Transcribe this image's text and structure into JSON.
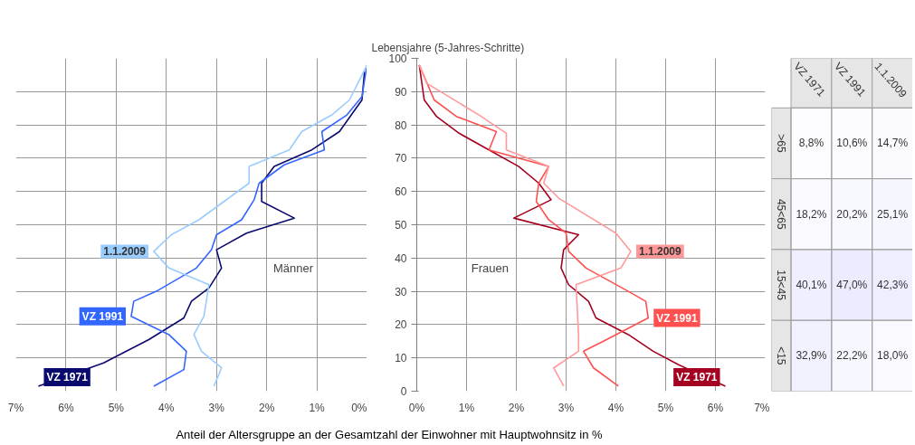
{
  "chart_data": [
    {
      "type": "line",
      "xlabel": "Anteil der Altersgruppe an der Gesamtzahl der Einwohner mit Hauptwohnsitz in %",
      "annotations": [
        "Männer"
      ],
      "xlim": [
        7,
        0
      ],
      "xticks": [
        {
          "value": 7,
          "label": "7%"
        },
        {
          "value": 6,
          "label": "6%"
        },
        {
          "value": 5,
          "label": "5%"
        },
        {
          "value": 4,
          "label": "4%"
        },
        {
          "value": 3,
          "label": "3%"
        },
        {
          "value": 2,
          "label": "2%"
        },
        {
          "value": 1,
          "label": "1%"
        },
        {
          "value": 0,
          "label": "0%"
        }
      ],
      "ylim": [
        0,
        100
      ],
      "yticks": [
        0,
        10,
        20,
        30,
        40,
        50,
        60,
        70,
        80,
        90,
        100
      ],
      "grid": true,
      "tick_labels": "x",
      "series": [
        {
          "name": "VZ 1971",
          "color": "#0a0a6e",
          "x": [
            6.55,
            5.25,
            4.35,
            3.65,
            3.5,
            3.15,
            2.9,
            3.0,
            2.4,
            1.45,
            2.1,
            2.1,
            1.85,
            1.1,
            0.55,
            0.1,
            0.05
          ],
          "values": [
            1.5,
            8.5,
            15.5,
            22,
            27,
            31,
            37,
            42.5,
            47.5,
            52,
            57,
            62.5,
            67.5,
            72.5,
            78,
            87.5,
            96
          ]
        },
        {
          "name": "VZ 1991",
          "color": "#3366ff",
          "x": [
            4.25,
            3.65,
            3.6,
            3.95,
            4.7,
            4.65,
            4.2,
            3.4,
            3.1,
            3.0,
            2.5,
            2.25,
            2.15,
            1.65,
            0.85,
            0.9,
            0.4,
            0.1,
            0
          ],
          "values": [
            1.5,
            6.5,
            12,
            17,
            22.5,
            27,
            30,
            37,
            42.5,
            47,
            51.5,
            57.5,
            62.5,
            68,
            72.5,
            78,
            83,
            88.5,
            98
          ]
        },
        {
          "name": "1.1.2009",
          "color": "#99ccff",
          "x": [
            3.05,
            2.9,
            3.3,
            3.45,
            3.25,
            3.15,
            3.95,
            4.25,
            3.9,
            3.35,
            2.85,
            2.35,
            2.35,
            1.55,
            1.3,
            0.7,
            0.35,
            0
          ],
          "values": [
            1.5,
            7,
            12,
            17,
            22.5,
            32,
            37,
            42,
            47,
            51.5,
            57,
            62.5,
            67.5,
            72.5,
            78,
            83,
            87.5,
            98
          ]
        }
      ]
    },
    {
      "type": "line",
      "ylabel": "Lebensjahre (5-Jahres-Schritte)",
      "annotations": [
        "Frauen"
      ],
      "xlim": [
        0,
        7
      ],
      "xticks": [
        {
          "value": 0,
          "label": "0%"
        },
        {
          "value": 1,
          "label": "1%"
        },
        {
          "value": 2,
          "label": "2%"
        },
        {
          "value": 3,
          "label": "3%"
        },
        {
          "value": 4,
          "label": "4%"
        },
        {
          "value": 5,
          "label": "5%"
        },
        {
          "value": 6,
          "label": "6%"
        },
        {
          "value": 7,
          "label": "7%"
        }
      ],
      "ylim": [
        0,
        100
      ],
      "yticks": [
        0,
        10,
        20,
        30,
        40,
        50,
        60,
        70,
        80,
        90,
        100
      ],
      "grid": true,
      "series": [
        {
          "name": "VZ 1971",
          "color": "#a50021",
          "x": [
            6.2,
            5.25,
            4.75,
            4.25,
            3.6,
            3.45,
            3.05,
            2.9,
            2.95,
            3.25,
            1.95,
            2.7,
            2.45,
            2.05,
            1.45,
            0.85,
            0.4,
            0.15,
            0.05
          ],
          "values": [
            1.5,
            8,
            12,
            17,
            22,
            27,
            32,
            37,
            42.5,
            47,
            52,
            57.5,
            62.5,
            67.5,
            72.5,
            77.5,
            82.5,
            87.5,
            98
          ]
        },
        {
          "name": "VZ 1991",
          "color": "#ff5050",
          "x": [
            4.05,
            3.55,
            3.35,
            3.75,
            4.65,
            4.6,
            4.25,
            3.4,
            3.05,
            3.0,
            2.65,
            2.4,
            2.45,
            2.65,
            1.45,
            1.6,
            0.8,
            0.35,
            0.05
          ],
          "values": [
            1.5,
            7,
            12,
            15,
            22,
            27,
            30,
            37,
            42,
            47.5,
            51.5,
            57,
            62.5,
            67.5,
            72.5,
            78,
            82.5,
            87.5,
            98
          ]
        },
        {
          "name": "1.1.2009",
          "color": "#ff9999",
          "x": [
            2.95,
            2.75,
            3.25,
            3.25,
            3.2,
            4.1,
            4.3,
            4.0,
            2.85,
            2.55,
            2.65,
            1.8,
            1.8,
            1.25,
            0.2,
            0.05
          ],
          "values": [
            1.5,
            7,
            12,
            17,
            32,
            37,
            42,
            47.5,
            58,
            62.5,
            67.5,
            72.5,
            77.5,
            83,
            92.5,
            98
          ]
        }
      ]
    },
    {
      "type": "heatmap",
      "categories": [
        "VZ 1971",
        "VZ 1991",
        "1.1.2009"
      ],
      "y_categories": [
        ">65",
        "45<65",
        "15<45",
        "<15"
      ],
      "cells": [
        [
          8.8,
          10.6,
          14.7
        ],
        [
          18.2,
          20.2,
          25.1
        ],
        [
          40.1,
          47.0,
          42.3
        ],
        [
          32.9,
          22.2,
          18.0
        ]
      ],
      "cell_labels": [
        [
          "8,8%",
          "10,6%",
          "14,7%"
        ],
        [
          "18,2%",
          "20,2%",
          "25,1%"
        ],
        [
          "40,1%",
          "47,0%",
          "42,3%"
        ],
        [
          "32,9%",
          "22,2%",
          "18,0%"
        ]
      ]
    }
  ]
}
